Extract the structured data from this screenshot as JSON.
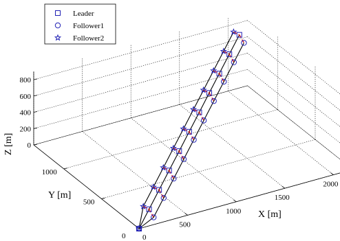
{
  "chart_data": {
    "type": "line3d",
    "view": "3d-box",
    "grid": true,
    "legend_position": "top-left",
    "xlabel": "X [m]",
    "ylabel": "Y [m]",
    "zlabel": "Z [m]",
    "xlim": [
      0,
      2200
    ],
    "ylim": [
      0,
      1400
    ],
    "zlim": [
      0,
      900
    ],
    "x_ticks": [
      "0",
      "500",
      "1000",
      "1500",
      "2000"
    ],
    "y_ticks": [
      "0",
      "500",
      "1000"
    ],
    "z_ticks": [
      "0",
      "200",
      "400",
      "600",
      "800"
    ],
    "origin_labels": [
      "0",
      "0"
    ],
    "colors": {
      "markers": "#1f1fb4",
      "links": "#dd1111",
      "paths": "#000000",
      "grid": "#000000"
    },
    "legend": [
      {
        "label": "Leader",
        "marker": "square"
      },
      {
        "label": "Follower1",
        "marker": "circle"
      },
      {
        "label": "Follower2",
        "marker": "star"
      }
    ],
    "series": [
      {
        "name": "Leader",
        "marker": "square",
        "points": [
          [
            0,
            0,
            0
          ],
          [
            200,
            125,
            80
          ],
          [
            400,
            250,
            160
          ],
          [
            600,
            375,
            240
          ],
          [
            800,
            500,
            320
          ],
          [
            1000,
            625,
            400
          ],
          [
            1200,
            750,
            480
          ],
          [
            1400,
            875,
            560
          ],
          [
            1600,
            1000,
            640
          ],
          [
            1800,
            1125,
            720
          ],
          [
            2000,
            1250,
            800
          ]
        ]
      },
      {
        "name": "Follower1",
        "marker": "circle",
        "points": [
          [
            0,
            0,
            0
          ],
          [
            220,
            90,
            0
          ],
          [
            420,
            215,
            80
          ],
          [
            620,
            340,
            160
          ],
          [
            820,
            465,
            240
          ],
          [
            1020,
            590,
            320
          ],
          [
            1220,
            715,
            400
          ],
          [
            1420,
            840,
            480
          ],
          [
            1620,
            965,
            560
          ],
          [
            1820,
            1090,
            640
          ],
          [
            2020,
            1215,
            720
          ]
        ]
      },
      {
        "name": "Follower2",
        "marker": "star",
        "points": [
          [
            0,
            0,
            0
          ],
          [
            160,
            150,
            110
          ],
          [
            360,
            275,
            190
          ],
          [
            560,
            400,
            270
          ],
          [
            760,
            525,
            350
          ],
          [
            960,
            650,
            430
          ],
          [
            1160,
            775,
            510
          ],
          [
            1360,
            900,
            590
          ],
          [
            1560,
            1025,
            670
          ],
          [
            1760,
            1150,
            750
          ],
          [
            1960,
            1275,
            830
          ]
        ]
      }
    ]
  }
}
